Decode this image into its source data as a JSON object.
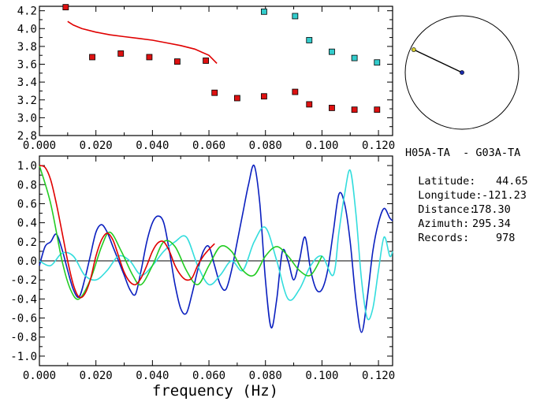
{
  "station_info": {
    "pair": "H05A-TA  - G03A-TA",
    "latitude_label": "Latitude:",
    "latitude": "44.65",
    "longitude_label": "Longitude:",
    "longitude": "-121.23",
    "distance_label": "Distance:",
    "distance": "178.30",
    "azimuth_label": "Azimuth:",
    "azimuth": "295.34",
    "records_label": "Records:",
    "records": "978"
  },
  "colors": {
    "red": "#e00000",
    "dark_blue": "#0a1fbf",
    "cyan": "#33dddd",
    "green": "#22cc22",
    "marker_red": "#dd1111",
    "marker_cyan": "#33cccc",
    "compass_point": "#d8d030"
  },
  "chart_data": [
    {
      "type": "scatter",
      "xlim": [
        0.0,
        0.125
      ],
      "ylim": [
        2.8,
        4.25
      ],
      "x_ticks": [
        "0.000",
        "0.020",
        "0.040",
        "0.060",
        "0.080",
        "0.100",
        "0.120"
      ],
      "y_ticks": [
        "2.8",
        "3.0",
        "3.2",
        "3.4",
        "3.6",
        "3.8",
        "4.0",
        "4.2"
      ],
      "series": [
        {
          "marker": "red-square",
          "x": [
            0.0093,
            0.0187,
            0.0288,
            0.0389,
            0.0488,
            0.0589,
            0.062,
            0.07,
            0.0795,
            0.0905,
            0.0955,
            0.1035,
            0.1115,
            0.1195
          ],
          "y": [
            4.24,
            3.68,
            3.72,
            3.68,
            3.63,
            3.64,
            3.28,
            3.22,
            3.24,
            3.29,
            3.15,
            3.11,
            3.09,
            3.09
          ]
        },
        {
          "marker": "cyan-square",
          "x": [
            0.0795,
            0.0905,
            0.0955,
            0.1035,
            0.1115,
            0.1195
          ],
          "y": [
            4.19,
            4.14,
            3.87,
            3.74,
            3.67,
            3.62
          ]
        },
        {
          "marker": "red-line",
          "x": [
            0.01,
            0.012,
            0.015,
            0.02,
            0.025,
            0.03,
            0.035,
            0.04,
            0.045,
            0.05,
            0.055,
            0.06,
            0.0628
          ],
          "y": [
            4.08,
            4.04,
            4.0,
            3.96,
            3.93,
            3.91,
            3.89,
            3.87,
            3.84,
            3.81,
            3.77,
            3.7,
            3.61
          ]
        }
      ]
    },
    {
      "type": "line",
      "xlabel": "frequency (Hz)",
      "xlim": [
        0.0,
        0.125
      ],
      "ylim": [
        -1.1,
        1.1
      ],
      "x_ticks": [
        "0.000",
        "0.020",
        "0.040",
        "0.060",
        "0.080",
        "0.100",
        "0.120"
      ],
      "y_ticks": [
        "1.0",
        "0.8",
        "0.6",
        "0.4",
        "0.2",
        "0.0",
        "-0.2",
        "-0.4",
        "-0.6",
        "-0.8",
        "-1.0"
      ],
      "series": [
        {
          "color": "dark_blue",
          "x": [
            0.0,
            0.002,
            0.004,
            0.006,
            0.008,
            0.01,
            0.012,
            0.014,
            0.016,
            0.018,
            0.02,
            0.022,
            0.024,
            0.026,
            0.028,
            0.03,
            0.032,
            0.034,
            0.036,
            0.038,
            0.04,
            0.042,
            0.044,
            0.046,
            0.048,
            0.05,
            0.052,
            0.054,
            0.056,
            0.058,
            0.06,
            0.062,
            0.064,
            0.066,
            0.068,
            0.07,
            0.072,
            0.074,
            0.076,
            0.078,
            0.08,
            0.082,
            0.084,
            0.086,
            0.088,
            0.09,
            0.092,
            0.094,
            0.096,
            0.098,
            0.1,
            0.102,
            0.104,
            0.106,
            0.108,
            0.11,
            0.112,
            0.114,
            0.116,
            0.118,
            0.12,
            0.122,
            0.124,
            0.125
          ],
          "y": [
            -0.05,
            0.15,
            0.2,
            0.28,
            0.12,
            -0.1,
            -0.3,
            -0.38,
            -0.2,
            0.05,
            0.3,
            0.38,
            0.3,
            0.15,
            0.0,
            -0.15,
            -0.3,
            -0.35,
            -0.1,
            0.2,
            0.4,
            0.47,
            0.4,
            0.1,
            -0.25,
            -0.5,
            -0.55,
            -0.35,
            -0.1,
            0.1,
            0.15,
            -0.05,
            -0.25,
            -0.3,
            -0.1,
            0.2,
            0.5,
            0.8,
            1.0,
            0.6,
            -0.2,
            -0.7,
            -0.4,
            0.1,
            0.0,
            -0.2,
            0.0,
            0.25,
            -0.1,
            -0.3,
            -0.3,
            -0.1,
            0.3,
            0.7,
            0.6,
            0.2,
            -0.4,
            -0.75,
            -0.4,
            0.1,
            0.4,
            0.55,
            0.45,
            0.42
          ]
        },
        {
          "color": "cyan",
          "x": [
            0.0,
            0.004,
            0.008,
            0.012,
            0.016,
            0.02,
            0.024,
            0.028,
            0.032,
            0.036,
            0.04,
            0.044,
            0.048,
            0.052,
            0.056,
            0.06,
            0.064,
            0.068,
            0.072,
            0.076,
            0.08,
            0.084,
            0.088,
            0.092,
            0.096,
            0.1,
            0.104,
            0.106,
            0.108,
            0.11,
            0.112,
            0.114,
            0.116,
            0.118,
            0.12,
            0.122,
            0.124,
            0.125
          ],
          "y": [
            0.0,
            -0.05,
            0.08,
            0.05,
            -0.15,
            -0.2,
            -0.1,
            0.05,
            0.0,
            -0.15,
            -0.05,
            0.1,
            0.2,
            0.25,
            -0.05,
            -0.25,
            -0.15,
            0.0,
            -0.1,
            0.2,
            0.35,
            0.0,
            -0.4,
            -0.3,
            -0.05,
            0.05,
            -0.15,
            0.3,
            0.7,
            0.95,
            0.5,
            -0.2,
            -0.6,
            -0.5,
            -0.1,
            0.25,
            0.05,
            0.1
          ]
        },
        {
          "color": "green",
          "x": [
            0.0,
            0.004,
            0.008,
            0.011,
            0.014,
            0.018,
            0.022,
            0.025,
            0.029,
            0.033,
            0.036,
            0.04,
            0.044,
            0.048,
            0.052,
            0.056,
            0.06,
            0.064,
            0.068,
            0.072,
            0.076,
            0.08,
            0.084,
            0.088,
            0.092,
            0.096,
            0.1
          ],
          "y": [
            1.0,
            0.6,
            0.0,
            -0.3,
            -0.4,
            -0.2,
            0.15,
            0.3,
            0.1,
            -0.15,
            -0.25,
            -0.05,
            0.2,
            0.15,
            -0.1,
            -0.25,
            -0.05,
            0.15,
            0.1,
            -0.1,
            -0.15,
            0.05,
            0.15,
            0.05,
            -0.1,
            -0.15,
            0.05
          ]
        },
        {
          "color": "red",
          "x": [
            0.0,
            0.002,
            0.004,
            0.006,
            0.008,
            0.01,
            0.012,
            0.014,
            0.016,
            0.018,
            0.02,
            0.022,
            0.024,
            0.026,
            0.028,
            0.03,
            0.032,
            0.034,
            0.036,
            0.038,
            0.04,
            0.042,
            0.044,
            0.046,
            0.048,
            0.05,
            0.052,
            0.054,
            0.056,
            0.058,
            0.06,
            0.062
          ],
          "y": [
            1.0,
            0.98,
            0.85,
            0.6,
            0.3,
            0.0,
            -0.25,
            -0.38,
            -0.35,
            -0.2,
            0.05,
            0.22,
            0.29,
            0.22,
            0.05,
            -0.12,
            -0.22,
            -0.25,
            -0.18,
            -0.05,
            0.1,
            0.19,
            0.2,
            0.1,
            -0.05,
            -0.15,
            -0.2,
            -0.18,
            -0.05,
            0.05,
            0.12,
            0.18
          ]
        }
      ]
    },
    {
      "type": "polar",
      "azimuth_deg": 295.34,
      "point_radius_fraction": 0.94
    }
  ]
}
